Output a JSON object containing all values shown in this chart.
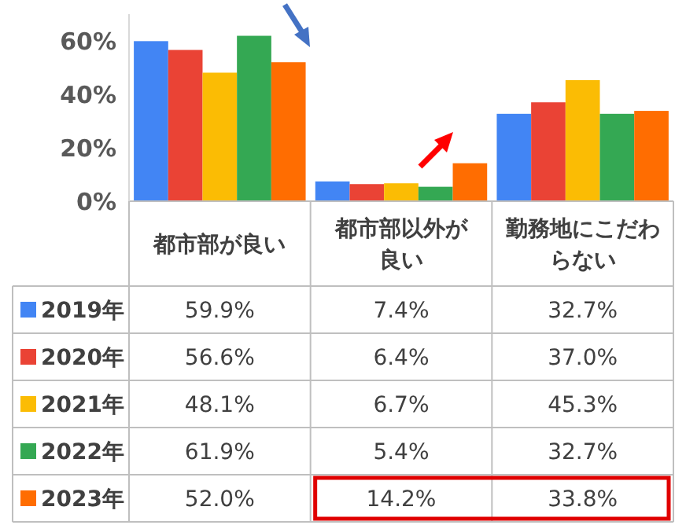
{
  "chart_data": {
    "type": "bar",
    "categories": [
      "都市部が良い",
      "都市部以外が良い",
      "勤務地にこだわらない"
    ],
    "series": [
      {
        "name": "2019年",
        "color": "#4285f4",
        "values": [
          59.9,
          7.4,
          32.7
        ],
        "value_labels": [
          "59.9%",
          "7.4%",
          "32.7%"
        ]
      },
      {
        "name": "2020年",
        "color": "#ea4335",
        "values": [
          56.6,
          6.4,
          37.0
        ],
        "value_labels": [
          "56.6%",
          "6.4%",
          "37.0%"
        ]
      },
      {
        "name": "2021年",
        "color": "#fbbc04",
        "values": [
          48.1,
          6.7,
          45.3
        ],
        "value_labels": [
          "48.1%",
          "6.7%",
          "45.3%"
        ]
      },
      {
        "name": "2022年",
        "color": "#34a853",
        "values": [
          61.9,
          5.4,
          32.7
        ],
        "value_labels": [
          "61.9%",
          "5.4%",
          "32.7%"
        ]
      },
      {
        "name": "2023年",
        "color": "#ff6d01",
        "values": [
          52.0,
          14.2,
          33.8
        ],
        "value_labels": [
          "52.0%",
          "14.2%",
          "33.8%"
        ]
      }
    ],
    "ylim": [
      0,
      70
    ],
    "yticks": [
      {
        "value": 0,
        "label": "0%"
      },
      {
        "value": 20,
        "label": "20%"
      },
      {
        "value": 40,
        "label": "40%"
      },
      {
        "value": 60,
        "label": "60%"
      }
    ],
    "grid": false,
    "legend": "bottom left"
  }
}
